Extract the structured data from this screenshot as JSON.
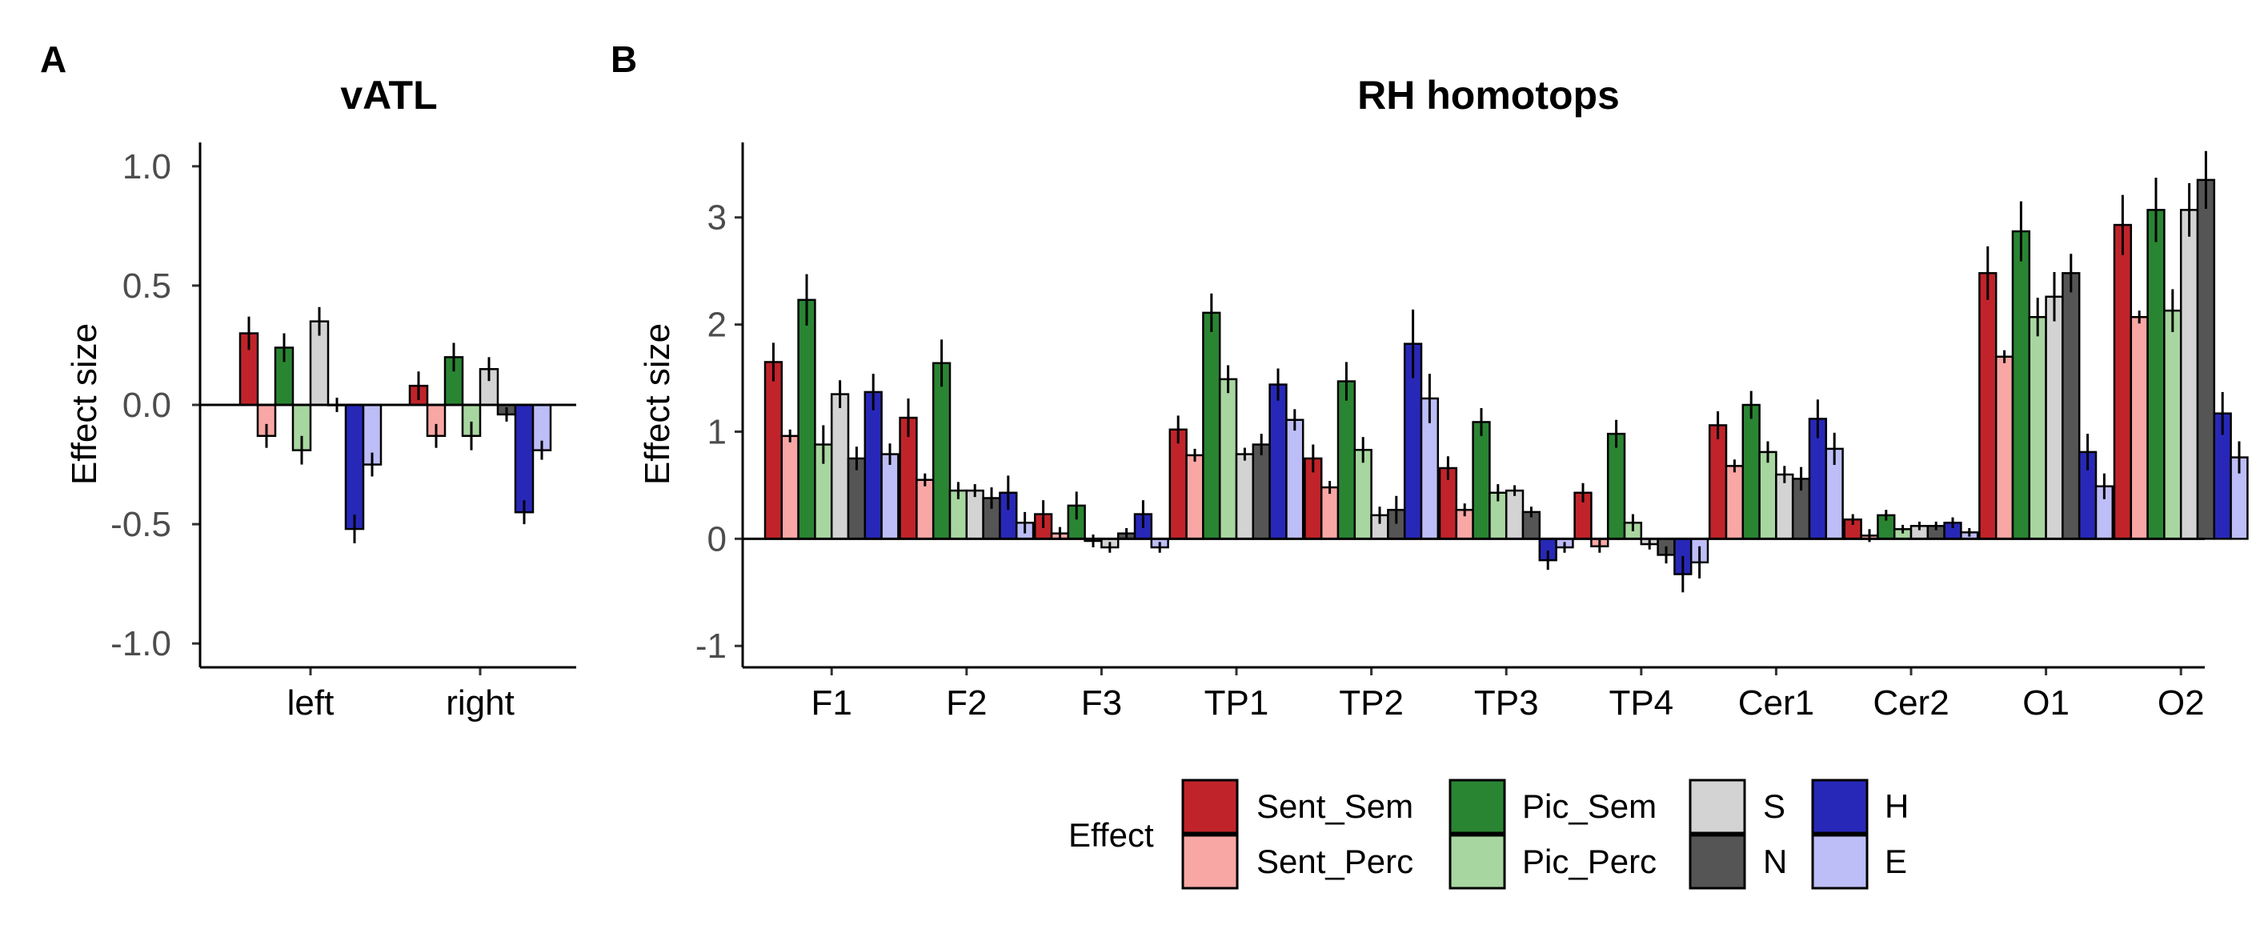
{
  "panels": {
    "a_label": "A",
    "b_label": "B"
  },
  "legend": {
    "title": "Effect",
    "entries": [
      {
        "name": "Sent_Sem",
        "color": "#C0242A"
      },
      {
        "name": "Sent_Perc",
        "color": "#F8A7A5"
      },
      {
        "name": "Pic_Sem",
        "color": "#2A8533"
      },
      {
        "name": "Pic_Perc",
        "color": "#A8D6A0"
      },
      {
        "name": "S",
        "color": "#D3D3D3"
      },
      {
        "name": "N",
        "color": "#555555"
      },
      {
        "name": "H",
        "color": "#2828B8"
      },
      {
        "name": "E",
        "color": "#BDBDF7"
      }
    ]
  },
  "chart_data": [
    {
      "type": "bar",
      "title": "vATL",
      "xlabel": "",
      "ylabel": "Effect size",
      "ylim": [
        -1.1,
        1.1
      ],
      "yticks": [
        1.0,
        0.5,
        0.0,
        -0.5,
        -1.0
      ],
      "ytick_labels": [
        "1.0",
        "0.5",
        "0.0",
        "-0.5",
        "-1.0"
      ],
      "categories": [
        "left",
        "right"
      ],
      "series": [
        {
          "name": "Sent_Sem",
          "values": [
            0.3,
            0.08
          ],
          "err": [
            0.07,
            0.06
          ]
        },
        {
          "name": "Sent_Perc",
          "values": [
            -0.13,
            -0.13
          ],
          "err": [
            0.05,
            0.05
          ]
        },
        {
          "name": "Pic_Sem",
          "values": [
            0.24,
            0.2
          ],
          "err": [
            0.06,
            0.06
          ]
        },
        {
          "name": "Pic_Perc",
          "values": [
            -0.19,
            -0.13
          ],
          "err": [
            0.06,
            0.06
          ]
        },
        {
          "name": "S",
          "values": [
            0.35,
            0.15
          ],
          "err": [
            0.06,
            0.05
          ]
        },
        {
          "name": "N",
          "values": [
            0.0,
            -0.04
          ],
          "err": [
            0.03,
            0.03
          ]
        },
        {
          "name": "H",
          "values": [
            -0.52,
            -0.45
          ],
          "err": [
            0.06,
            0.05
          ]
        },
        {
          "name": "E",
          "values": [
            -0.25,
            -0.19
          ],
          "err": [
            0.05,
            0.04
          ]
        }
      ],
      "grid": false,
      "baseline": 0
    },
    {
      "type": "bar",
      "title": "RH homotops",
      "xlabel": "",
      "ylabel": "Effect size",
      "ylim": [
        -1.2,
        3.7
      ],
      "yticks": [
        3,
        2,
        1,
        0,
        -1
      ],
      "ytick_labels": [
        "3",
        "2",
        "1",
        "0",
        "-1"
      ],
      "categories": [
        "F1",
        "F2",
        "F3",
        "TP1",
        "TP2",
        "TP3",
        "TP4",
        "Cer1",
        "Cer2",
        "O1",
        "O2"
      ],
      "series": [
        {
          "name": "Sent_Sem",
          "values": [
            1.65,
            1.13,
            0.23,
            1.02,
            0.75,
            0.66,
            0.43,
            1.06,
            0.18,
            2.48,
            2.93
          ],
          "err": [
            0.18,
            0.18,
            0.13,
            0.13,
            0.13,
            0.11,
            0.09,
            0.13,
            0.05,
            0.25,
            0.28
          ]
        },
        {
          "name": "Sent_Perc",
          "values": [
            0.96,
            0.55,
            0.05,
            0.78,
            0.48,
            0.27,
            -0.07,
            0.68,
            0.03,
            1.7,
            2.07
          ]
        },
        {
          "name": "Pic_Sem",
          "values": [
            2.23,
            1.64,
            0.31,
            2.11,
            1.47,
            1.09,
            0.98,
            1.25,
            0.22,
            2.87,
            3.07
          ],
          "err": [
            0.24,
            0.22,
            0.13,
            0.18,
            0.18,
            0.13,
            0.13,
            0.13,
            0.05,
            0.28,
            0.3
          ]
        },
        {
          "name": "Pic_Perc",
          "values": [
            0.88,
            0.45,
            -0.02,
            1.49,
            0.83,
            0.43,
            0.15,
            0.81,
            0.09,
            2.07,
            2.13
          ],
          "err": [
            0.18,
            0.08,
            0.06,
            0.13,
            0.12,
            0.08,
            0.08,
            0.1,
            0.04,
            0.18,
            0.2
          ]
        },
        {
          "name": "S",
          "values": [
            1.35,
            0.45,
            -0.08,
            0.79,
            0.22,
            0.45,
            -0.05,
            0.6,
            0.12,
            2.26,
            3.07
          ],
          "err": [
            0.13,
            0.06,
            0.05,
            0.06,
            0.08,
            0.05,
            0.05,
            0.08,
            0.04,
            0.23,
            0.25
          ]
        },
        {
          "name": "N",
          "values": [
            0.75,
            0.38,
            0.05,
            0.88,
            0.27,
            0.25,
            -0.15,
            0.56,
            0.12,
            2.48,
            3.35
          ],
          "err": [
            0.11,
            0.1,
            0.05,
            0.1,
            0.13,
            0.05,
            0.08,
            0.11,
            0.04,
            0.18,
            0.27
          ]
        },
        {
          "name": "H",
          "values": [
            1.37,
            0.43,
            0.23,
            1.44,
            1.82,
            -0.2,
            -0.33,
            1.12,
            0.15,
            0.81,
            1.17
          ],
          "err": [
            0.17,
            0.16,
            0.13,
            0.15,
            0.32,
            0.09,
            0.17,
            0.18,
            0.05,
            0.17,
            0.2
          ]
        },
        {
          "name": "E",
          "values": [
            0.79,
            0.15,
            -0.08,
            1.11,
            1.31,
            -0.08,
            -0.22,
            0.84,
            0.06,
            0.49,
            0.76
          ],
          "err": [
            0.1,
            0.1,
            0.05,
            0.1,
            0.23,
            0.05,
            0.15,
            0.15,
            0.04,
            0.12,
            0.15
          ]
        }
      ],
      "grid": false,
      "baseline": 0
    }
  ]
}
